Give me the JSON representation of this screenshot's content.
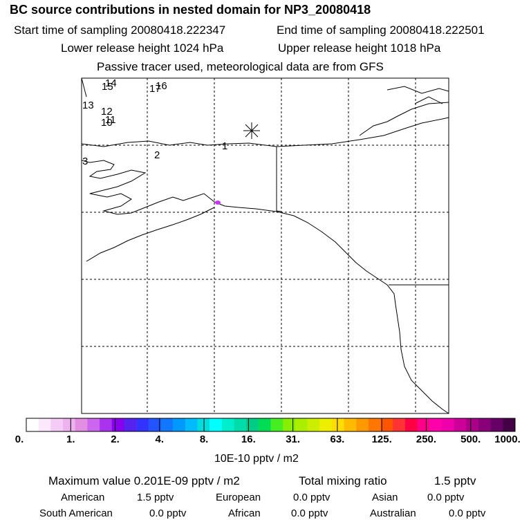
{
  "header": {
    "title": "BC  source contributions in nested domain for NP3_20080418",
    "start_time": "Start time of sampling 20080418.222347",
    "end_time": "End time of sampling 20080418.222501",
    "lower_release": "Lower release height 1024 hPa",
    "upper_release": "Upper release height 1018 hPa",
    "tracer_note": "Passive tracer used, meteorological data are from GFS"
  },
  "map": {
    "trajectory_labels": [
      "1",
      "2",
      "3",
      "10",
      "11",
      "12",
      "13",
      "14",
      "15",
      "16",
      "17"
    ],
    "marker": "receptor-asterisk",
    "hotspot_color": "#cc33ff"
  },
  "color_scale": {
    "colors": [
      "#ffffff",
      "#fbe8fb",
      "#f5ccf5",
      "#eeb2ee",
      "#e28ee2",
      "#cc66ee",
      "#aa33ee",
      "#8800ee",
      "#5522ee",
      "#3333ff",
      "#2255ff",
      "#1177ff",
      "#0099ff",
      "#00bbff",
      "#00dddd",
      "#00ffff",
      "#00eecc",
      "#00ddaa",
      "#00cc88",
      "#00dd55",
      "#44ee22",
      "#88ee00",
      "#aaee00",
      "#ccee00",
      "#eeee00",
      "#ffdd00",
      "#ffbb00",
      "#ff9900",
      "#ff7700",
      "#ff5500",
      "#ff3333",
      "#ff0044",
      "#ff0088",
      "#ff00aa",
      "#ee00aa",
      "#cc0099",
      "#aa0088",
      "#880077",
      "#660066",
      "#440044"
    ],
    "tick_labels": [
      "0.",
      "1.",
      "2.",
      "4.",
      "8.",
      "16.",
      "31.",
      "63.",
      "125.",
      "250.",
      "500.",
      "1000."
    ],
    "unit": "10E-10 pptv / m2"
  },
  "stats": {
    "max_value": "Maximum value  0.201E-09 pptv / m2",
    "total_mixing": "Total mixing ratio",
    "total_value": "1.5 pptv",
    "regions": [
      {
        "name": "American",
        "value": "1.5 pptv"
      },
      {
        "name": "European",
        "value": "0.0 pptv"
      },
      {
        "name": "Asian",
        "value": "0.0 pptv"
      },
      {
        "name": "South American",
        "value": "0.0 pptv"
      },
      {
        "name": "African",
        "value": "0.0 pptv"
      },
      {
        "name": "Australian",
        "value": "0.0 pptv"
      }
    ]
  }
}
